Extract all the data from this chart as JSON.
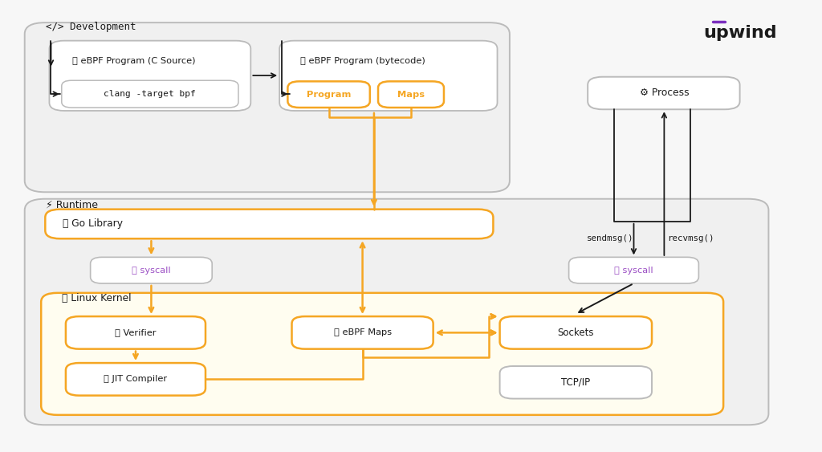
{
  "bg_color": "#f7f7f7",
  "gold": "#F5A623",
  "gray_border": "#bbbbbb",
  "purple": "#9B4FC4",
  "black": "#1a1a1a",
  "white": "#ffffff",
  "light_bg": "#f0f0f0",
  "kernel_bg": "#fffdf0",
  "upwind_color": "#1a1a1a",
  "upwind_purple": "#7B2FBE",
  "upwind_text": "upwind",
  "dev_label": "</> Development",
  "runtime_label": "Runtime",
  "kernel_label": "Linux Kernel",
  "csource_label": "eBPF Program (C Source)",
  "bytecode_label": "eBPF Program (bytecode)",
  "clang_label": "clang -target bpf",
  "program_label": "Program",
  "maps_label": "Maps",
  "golibrary_label": "Go Library",
  "syscall_label": "syscall",
  "verifier_label": "Verifier",
  "jit_label": "JIT Compiler",
  "ebpfmaps_label": "eBPF Maps",
  "sockets_label": "Sockets",
  "tcpip_label": "TCP/IP",
  "process_label": "Process",
  "sendmsg_label": "sendmsg()",
  "recvmsg_label": "recvmsg()"
}
